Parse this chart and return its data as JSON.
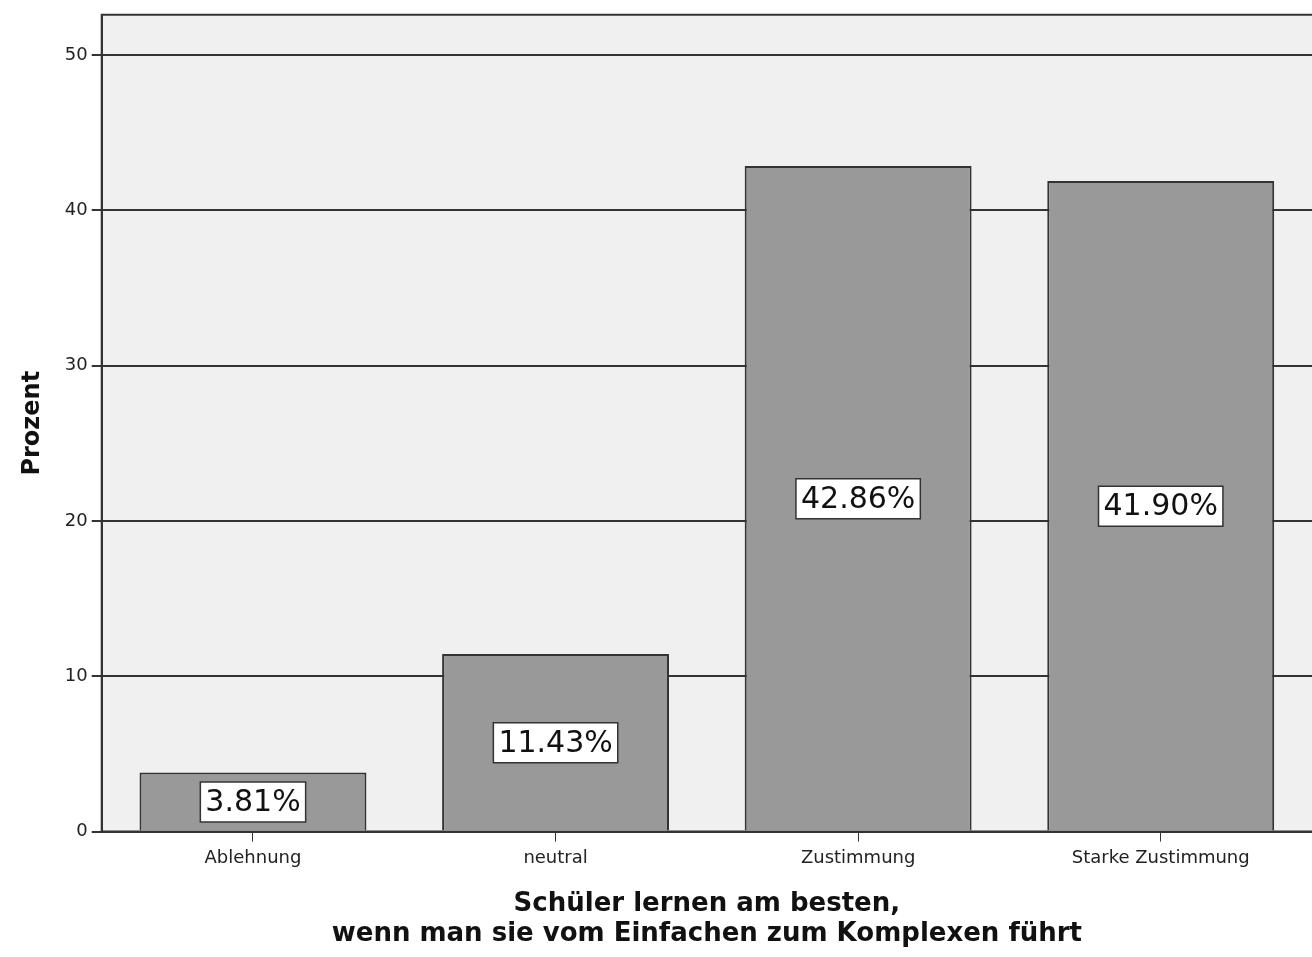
{
  "chart_data": {
    "type": "bar",
    "xlabel": "Schüler lernen am besten,\nwenn man sie vom Einfachen zum Komplexen führt",
    "ylabel": "Prozent",
    "categories": [
      "Ablehnung",
      "neutral",
      "Zustimmung",
      "Starke Zustimmung"
    ],
    "values": [
      3.81,
      11.43,
      42.86,
      41.9
    ],
    "value_labels": [
      "3.81%",
      "11.43%",
      "42.86%",
      "41.90%"
    ],
    "color": "#999999",
    "ylim": [
      0,
      52.6
    ],
    "yticks": [
      0,
      10,
      20,
      30,
      40,
      50
    ],
    "grid": "y",
    "legend": false
  }
}
